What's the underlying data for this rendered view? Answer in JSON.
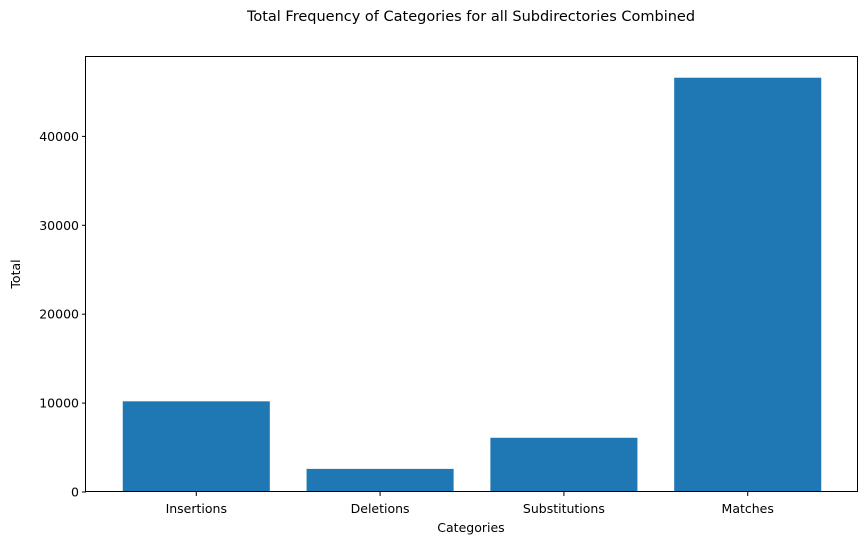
{
  "chart_data": {
    "type": "bar",
    "title": "Total Frequency of Categories for all Subdirectories Combined",
    "xlabel": "Categories",
    "ylabel": "Total",
    "categories": [
      "Insertions",
      "Deletions",
      "Substitutions",
      "Matches"
    ],
    "values": [
      10200,
      2600,
      6100,
      46600
    ],
    "ylim": [
      0,
      48930
    ],
    "yticks": [
      0,
      10000,
      20000,
      30000,
      40000
    ],
    "ytick_labels": [
      "0",
      "10000",
      "20000",
      "30000",
      "40000"
    ],
    "bar_color": "#1f77b4",
    "grid": false,
    "legend": "none"
  }
}
